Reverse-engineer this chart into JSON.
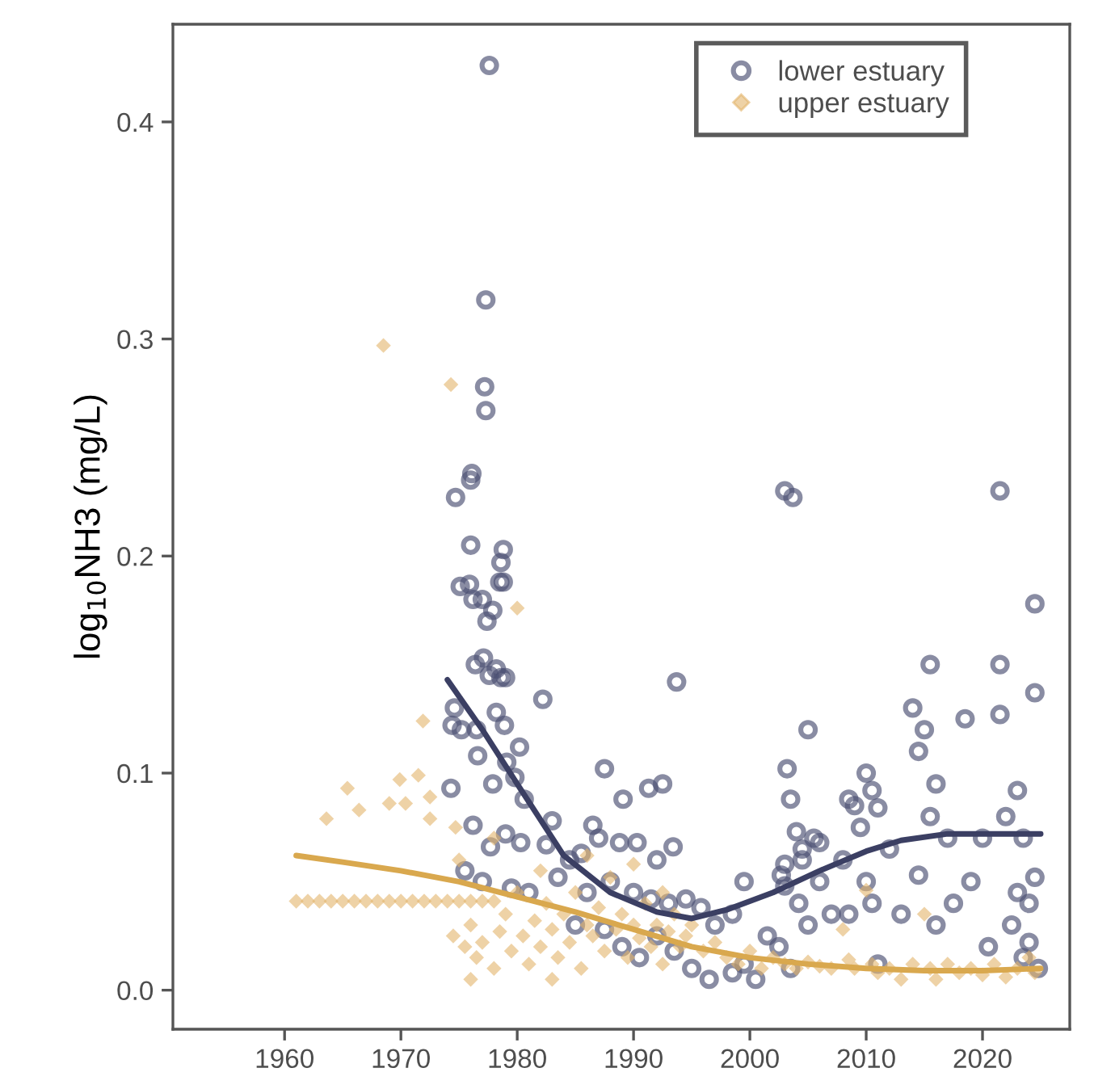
{
  "chart_data": {
    "type": "scatter",
    "ylabel": "log$_{10}$NH3 (mg/L)",
    "xlim": [
      1950.4,
      2027.5
    ],
    "xticks": [
      1960,
      1970,
      1980,
      1990,
      2000,
      2010,
      2020
    ],
    "ylim": [
      -0.018,
      0.445
    ],
    "yticks": [
      {
        "value": 0,
        "label": "0.0"
      },
      0.1,
      0.2,
      0.3,
      0.4
    ],
    "grid": false,
    "legend": "top right",
    "series": [
      {
        "name": "lower estuary",
        "color": "#4a4f72",
        "marker": "circle",
        "x": [
          1977.6,
          1977.3,
          1977.2,
          1977.3,
          1976.1,
          1976.0,
          1974.7,
          1976.0,
          1978.8,
          1978.6,
          1978.5,
          1978.8,
          1975.9,
          1975.1,
          1976.2,
          1977.0,
          1977.4,
          1977.9,
          1977.1,
          1976.4,
          1977.6,
          1978.2,
          1978.6,
          1979.0,
          1982.2,
          1974.6,
          1974.4,
          1975.2,
          1976.5,
          1978.2,
          1978.9,
          1980.2,
          1976.6,
          1979.1,
          1977.9,
          1979.8,
          1974.3,
          1987.5,
          1980.6,
          1983.0,
          1986.5,
          1989.1,
          1991.3,
          1992.5,
          1993.7,
          1976.2,
          1977.7,
          1979.0,
          1980.3,
          1982.5,
          1984.5,
          1985.5,
          1987.0,
          1988.8,
          1990.3,
          1992.0,
          1993.4,
          1975.5,
          1977.0,
          1979.5,
          1981.0,
          1983.5,
          1986.0,
          1988.0,
          1990.0,
          1991.5,
          1993.0,
          1994.5,
          1995.8,
          1997.0,
          1998.5,
          1999.5,
          1985.0,
          1987.5,
          1989.0,
          1990.5,
          1992.0,
          1993.5,
          1995.0,
          1996.5,
          1998.5,
          1999.5,
          2000.5,
          2001.5,
          2002.5,
          2003.0,
          2003.7,
          2003.2,
          2003.5,
          2004.0,
          2004.5,
          2003.0,
          2002.7,
          2003.0,
          2004.5,
          2005.5,
          2005.0,
          2006.0,
          2004.2,
          2005.0,
          2003.5,
          2006.0,
          2007.0,
          2008.5,
          2009.0,
          2008.0,
          2008.5,
          2009.5,
          2010.0,
          2010.5,
          2011.0,
          2010.0,
          2010.5,
          2011.0,
          2012.0,
          2013.0,
          2014.0,
          2014.5,
          2015.0,
          2015.5,
          2014.5,
          2015.5,
          2016.0,
          2017.0,
          2017.5,
          2016.0,
          2018.5,
          2019.0,
          2020.0,
          2020.5,
          2021.5,
          2021.5,
          2021.5,
          2022.0,
          2023.0,
          2023.5,
          2023.0,
          2024.0,
          2024.5,
          2024.5,
          2024.5,
          2024.0,
          2024.8,
          2022.5,
          2023.5
        ],
        "values": [
          0.426,
          0.318,
          0.278,
          0.267,
          0.238,
          0.235,
          0.227,
          0.205,
          0.203,
          0.197,
          0.188,
          0.188,
          0.187,
          0.186,
          0.18,
          0.18,
          0.17,
          0.175,
          0.153,
          0.15,
          0.145,
          0.148,
          0.144,
          0.144,
          0.134,
          0.13,
          0.122,
          0.12,
          0.12,
          0.128,
          0.122,
          0.112,
          0.108,
          0.105,
          0.095,
          0.098,
          0.093,
          0.102,
          0.088,
          0.078,
          0.076,
          0.088,
          0.093,
          0.095,
          0.142,
          0.076,
          0.066,
          0.072,
          0.068,
          0.067,
          0.06,
          0.063,
          0.07,
          0.068,
          0.068,
          0.06,
          0.066,
          0.055,
          0.05,
          0.047,
          0.045,
          0.052,
          0.045,
          0.05,
          0.045,
          0.042,
          0.04,
          0.042,
          0.038,
          0.03,
          0.035,
          0.05,
          0.03,
          0.028,
          0.02,
          0.015,
          0.025,
          0.018,
          0.01,
          0.005,
          0.008,
          0.012,
          0.005,
          0.025,
          0.02,
          0.23,
          0.227,
          0.102,
          0.088,
          0.073,
          0.065,
          0.058,
          0.053,
          0.048,
          0.06,
          0.07,
          0.12,
          0.068,
          0.04,
          0.03,
          0.01,
          0.05,
          0.035,
          0.088,
          0.085,
          0.06,
          0.035,
          0.075,
          0.1,
          0.092,
          0.084,
          0.05,
          0.04,
          0.012,
          0.065,
          0.035,
          0.13,
          0.11,
          0.12,
          0.15,
          0.053,
          0.08,
          0.095,
          0.07,
          0.04,
          0.03,
          0.125,
          0.05,
          0.07,
          0.02,
          0.23,
          0.15,
          0.127,
          0.08,
          0.092,
          0.07,
          0.045,
          0.04,
          0.178,
          0.137,
          0.052,
          0.022,
          0.01,
          0.03,
          0.015
        ]
      },
      {
        "name": "upper estuary",
        "color": "#e2b46a",
        "marker": "diamond",
        "x": [
          1968.5,
          1974.3,
          1980.0,
          1971.9,
          1965.4,
          1963.6,
          1966.4,
          1969.9,
          1971.5,
          1969.0,
          1970.4,
          1972.5,
          1972.5,
          1974.7,
          1961,
          1962,
          1963,
          1964,
          1965,
          1966,
          1967,
          1968,
          1969,
          1970,
          1971,
          1972,
          1973,
          1974,
          1975,
          1976,
          1977,
          1978,
          1974.5,
          1975.5,
          1976,
          1976.5,
          1977,
          1978,
          1978.5,
          1979,
          1979.5,
          1980,
          1980.5,
          1981,
          1981.5,
          1982,
          1982.5,
          1983,
          1983.5,
          1984,
          1984.5,
          1985,
          1985.5,
          1986,
          1986.5,
          1987,
          1987.5,
          1988,
          1988.5,
          1989,
          1989.5,
          1990,
          1990.5,
          1991,
          1991.5,
          1992,
          1992.5,
          1993,
          1993.5,
          1994,
          1994.5,
          1995,
          1996,
          1997,
          1998,
          1999,
          2000,
          2001,
          2002,
          2003,
          2004,
          2005,
          2006,
          2007,
          2008,
          2008.5,
          2009,
          2010,
          2010.5,
          2011,
          2012,
          2013,
          2014,
          2015,
          2015.5,
          2016,
          2017,
          2018,
          2019,
          2020,
          2021,
          2022,
          2023,
          2024,
          2024.5,
          1975,
          1978,
          1982,
          1986,
          1990,
          1992.5,
          1983,
          1976
        ],
        "values": [
          0.297,
          0.279,
          0.176,
          0.124,
          0.093,
          0.079,
          0.083,
          0.097,
          0.099,
          0.086,
          0.086,
          0.089,
          0.079,
          0.075,
          0.041,
          0.041,
          0.041,
          0.041,
          0.041,
          0.041,
          0.041,
          0.041,
          0.041,
          0.041,
          0.041,
          0.041,
          0.041,
          0.041,
          0.041,
          0.041,
          0.041,
          0.041,
          0.025,
          0.02,
          0.03,
          0.015,
          0.022,
          0.01,
          0.027,
          0.035,
          0.018,
          0.045,
          0.025,
          0.012,
          0.032,
          0.02,
          0.04,
          0.028,
          0.015,
          0.035,
          0.022,
          0.045,
          0.01,
          0.03,
          0.025,
          0.038,
          0.018,
          0.052,
          0.028,
          0.035,
          0.015,
          0.03,
          0.024,
          0.04,
          0.02,
          0.03,
          0.012,
          0.027,
          0.035,
          0.02,
          0.025,
          0.03,
          0.018,
          0.022,
          0.015,
          0.012,
          0.018,
          0.01,
          0.015,
          0.012,
          0.01,
          0.013,
          0.011,
          0.01,
          0.028,
          0.014,
          0.01,
          0.046,
          0.012,
          0.008,
          0.01,
          0.005,
          0.012,
          0.035,
          0.01,
          0.005,
          0.012,
          0.008,
          0.01,
          0.007,
          0.012,
          0.006,
          0.01,
          0.015,
          0.008,
          0.06,
          0.07,
          0.055,
          0.062,
          0.058,
          0.045,
          0.005,
          0.005
        ]
      },
      {
        "type": "line",
        "color": "#3b3f63",
        "x": [
          1974,
          1977,
          1980,
          1984,
          1988,
          1992,
          1995,
          1998,
          2002,
          2006,
          2010,
          2013,
          2017,
          2021,
          2025
        ],
        "values": [
          0.143,
          0.12,
          0.095,
          0.062,
          0.045,
          0.036,
          0.033,
          0.037,
          0.045,
          0.055,
          0.064,
          0.069,
          0.072,
          0.072,
          0.072
        ]
      },
      {
        "type": "line",
        "color": "#d9a84e",
        "x": [
          1961,
          1965,
          1970,
          1975,
          1980,
          1985,
          1990,
          1995,
          2000,
          2005,
          2010,
          2015,
          2020,
          2025
        ],
        "values": [
          0.062,
          0.059,
          0.055,
          0.05,
          0.043,
          0.036,
          0.028,
          0.02,
          0.015,
          0.012,
          0.01,
          0.009,
          0.009,
          0.01
        ]
      }
    ]
  }
}
